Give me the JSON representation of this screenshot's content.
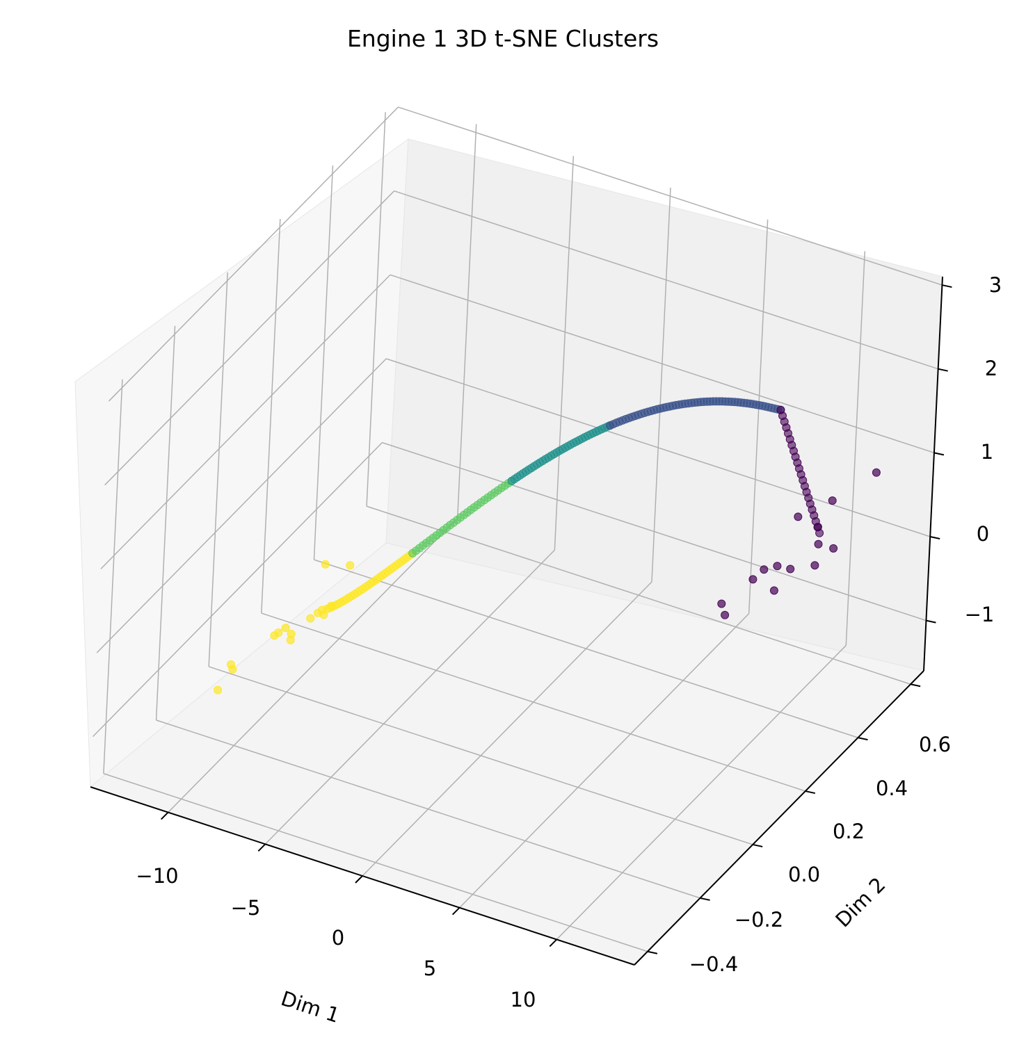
{
  "chart_data": {
    "type": "scatter",
    "projection": "3d",
    "title": "Engine 1 3D t-SNE Clusters",
    "xlabel": "Dim 1",
    "ylabel": "Dim 2",
    "zlabel": "",
    "xlim": [
      -14,
      14
    ],
    "ylim": [
      -0.45,
      0.65
    ],
    "zlim": [
      -1.6,
      3.1
    ],
    "x_ticks": [
      "−10",
      "−5",
      "0",
      "5",
      "10"
    ],
    "y_ticks": [
      "−0.4",
      "−0.2",
      "0.0",
      "0.2",
      "0.4",
      "0.6"
    ],
    "z_ticks": [
      "−1",
      "0",
      "1",
      "2",
      "3"
    ],
    "grid": true,
    "colormap": "viridis",
    "clusters": [
      {
        "color": "#fde725",
        "points": [
          [
            -12.6,
            -0.07,
            -1.55
          ],
          [
            -12.0,
            -0.07,
            -1.2
          ],
          [
            -11.9,
            -0.07,
            -1.25
          ],
          [
            -10.3,
            0.03,
            -1.1
          ],
          [
            -10.5,
            -0.02,
            -0.9
          ],
          [
            -9.9,
            0.0,
            -0.9
          ],
          [
            -10.2,
            0.0,
            -0.85
          ],
          [
            -10.3,
            -0.02,
            -0.85
          ],
          [
            -9.6,
            0.05,
            -0.85
          ],
          [
            -9.1,
            0.06,
            -0.2
          ],
          [
            -8.1,
            0.08,
            -0.2
          ],
          [
            -8.6,
            0.0,
            -0.55
          ],
          [
            -8.3,
            0.0,
            -0.55
          ],
          [
            -8.4,
            0.0,
            -0.5
          ],
          [
            -8.2,
            0.02,
            -0.5
          ]
        ],
        "curve_x_range": [
          -8.4,
          -4.5
        ],
        "curve_count": 32
      },
      {
        "color": "#5ec962",
        "curve_x_range": [
          -4.5,
          0.0
        ],
        "curve_count": 30
      },
      {
        "color": "#21918c",
        "curve_x_range": [
          0.0,
          4.5
        ],
        "curve_count": 36
      },
      {
        "color": "#3b528b",
        "curve_x_range": [
          4.5,
          12.5
        ],
        "curve_count": 56
      },
      {
        "color": "#440154",
        "points": [
          [
            13.3,
            0.1,
            1.35
          ],
          [
            13.2,
            0.1,
            1.05
          ],
          [
            12.1,
            0.1,
            1.1
          ],
          [
            12.0,
            0.15,
            1.05
          ],
          [
            11.2,
            0.05,
            0.9
          ],
          [
            11.4,
            0.05,
            0.78
          ],
          [
            12.7,
            0.2,
            0.95
          ],
          [
            13.3,
            0.26,
            1.1
          ],
          [
            13.3,
            0.25,
            0.88
          ],
          [
            14.2,
            0.25,
            1.15
          ],
          [
            13.4,
            0.3,
            1.5
          ],
          [
            14.8,
            0.36,
            1.75
          ],
          [
            14.0,
            0.2,
            1.55
          ],
          [
            13.6,
            0.15,
            1.8
          ]
        ],
        "curve_x_range": [
          12.5,
          14.6
        ],
        "curve_count": 22
      }
    ]
  }
}
